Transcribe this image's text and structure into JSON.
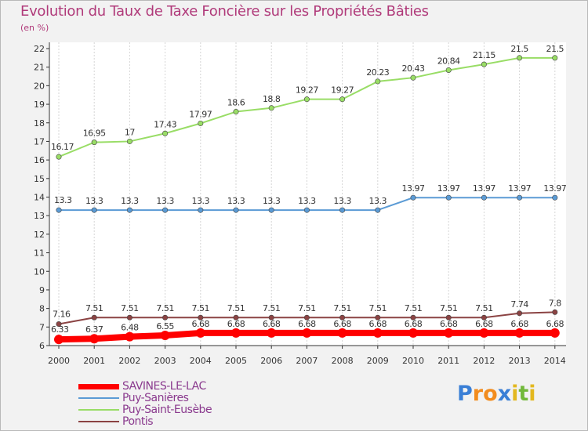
{
  "chart_data": {
    "type": "line",
    "title": "Evolution du Taux de Taxe Foncière sur les Propriétés Bâties",
    "subtitle": "(en %)",
    "x": [
      "2000",
      "2001",
      "2002",
      "2003",
      "2004",
      "2005",
      "2006",
      "2007",
      "2008",
      "2009",
      "2010",
      "2011",
      "2012",
      "2013",
      "2014"
    ],
    "yticks": [
      6,
      7,
      8,
      9,
      10,
      11,
      12,
      13,
      14,
      15,
      16,
      17,
      18,
      19,
      20,
      21,
      22
    ],
    "ylim": [
      6,
      22
    ],
    "grid": "vertical",
    "legend_position": "bottom-left",
    "series": [
      {
        "name": "SAVINES-LE-LAC",
        "color": "#ff0000",
        "values": [
          6.33,
          6.37,
          6.48,
          6.55,
          6.68,
          6.68,
          6.68,
          6.68,
          6.68,
          6.68,
          6.68,
          6.68,
          6.68,
          6.68,
          6.68
        ],
        "labels": [
          "6.33",
          "6.37",
          "6.48",
          "6.55",
          "6.68",
          "6.68",
          "6.68",
          "6.68",
          "6.68",
          "6.68",
          "6.68",
          "6.68",
          "6.68",
          "6.68",
          "6.68"
        ]
      },
      {
        "name": "Puy-Sanières",
        "color": "#5b9bd5",
        "values": [
          13.3,
          13.3,
          13.3,
          13.3,
          13.3,
          13.3,
          13.3,
          13.3,
          13.3,
          13.3,
          13.97,
          13.97,
          13.97,
          13.97,
          13.97
        ],
        "labels": [
          "13.3",
          "13.3",
          "13.3",
          "13.3",
          "13.3",
          "13.3",
          "13.3",
          "13.3",
          "13.3",
          "13.3",
          "13.97",
          "13.97",
          "13.97",
          "13.97",
          "13.97"
        ]
      },
      {
        "name": "Puy-Saint-Eusèbe",
        "color": "#99dd66",
        "values": [
          16.17,
          16.95,
          17,
          17.43,
          17.97,
          18.6,
          18.8,
          19.27,
          19.27,
          20.23,
          20.43,
          20.84,
          21.15,
          21.5,
          21.5
        ],
        "labels": [
          "16.17",
          "16.95",
          "17",
          "17.43",
          "17.97",
          "18.6",
          "18.8",
          "19.27",
          "19.27",
          "20.23",
          "20.43",
          "20.84",
          "21.15",
          "21.5",
          "21.5"
        ]
      },
      {
        "name": "Pontis",
        "color": "#8b4343",
        "values": [
          7.16,
          7.51,
          7.51,
          7.51,
          7.51,
          7.51,
          7.51,
          7.51,
          7.51,
          7.51,
          7.51,
          7.51,
          7.51,
          7.74,
          7.8
        ],
        "labels": [
          "7.16",
          "7.51",
          "7.51",
          "7.51",
          "7.51",
          "7.51",
          "7.51",
          "7.51",
          "7.51",
          "7.51",
          "7.51",
          "7.51",
          "7.51",
          "7.74",
          "7.8"
        ]
      }
    ]
  },
  "brand": {
    "text": "Proxiti",
    "letters": [
      "P",
      "r",
      "o",
      "x",
      "i",
      "t",
      "i"
    ],
    "colors": [
      "#3a7fd6",
      "#f28c1e",
      "#f28c1e",
      "#3a7fd6",
      "#e3b81f",
      "#72b93b",
      "#e3b81f"
    ]
  }
}
